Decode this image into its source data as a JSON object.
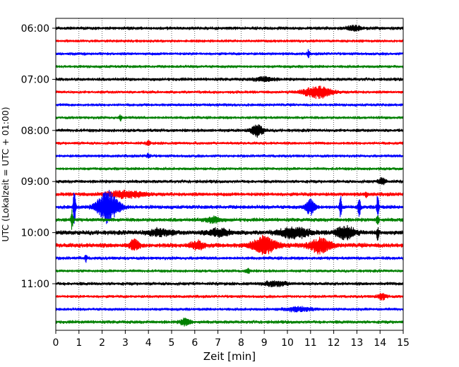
{
  "chart_data": {
    "type": "line",
    "xlabel": "Zeit  [min]",
    "ylabel": "UTC (Lokalzeit = UTC + 01:00)",
    "xlim": [
      0,
      15
    ],
    "x_ticks": [
      "0",
      "1",
      "2",
      "3",
      "4",
      "5",
      "6",
      "7",
      "8",
      "9",
      "10",
      "11",
      "12",
      "13",
      "14",
      "15"
    ],
    "y_ticks": [
      "06:00",
      "07:00",
      "08:00",
      "09:00",
      "10:00",
      "11:00"
    ],
    "grid": "vertical dotted at each minute",
    "series_colors": [
      "#000000",
      "#ff0000",
      "#0000ff",
      "#008000"
    ],
    "traces": [
      {
        "start": "06:00",
        "color": "#000000",
        "amp": 0.22,
        "events": [
          {
            "t": 12.9,
            "a": 0.35,
            "w": 0.3
          }
        ]
      },
      {
        "start": "06:15",
        "color": "#ff0000",
        "amp": 0.2,
        "events": []
      },
      {
        "start": "06:30",
        "color": "#0000ff",
        "amp": 0.2,
        "events": [
          {
            "t": 10.9,
            "a": 0.55,
            "w": 0.05
          }
        ]
      },
      {
        "start": "06:45",
        "color": "#008000",
        "amp": 0.2,
        "events": []
      },
      {
        "start": "07:00",
        "color": "#000000",
        "amp": 0.22,
        "events": [
          {
            "t": 9.0,
            "a": 0.3,
            "w": 0.4
          }
        ]
      },
      {
        "start": "07:15",
        "color": "#ff0000",
        "amp": 0.2,
        "events": [
          {
            "t": 11.3,
            "a": 0.9,
            "w": 0.6
          }
        ]
      },
      {
        "start": "07:30",
        "color": "#0000ff",
        "amp": 0.2,
        "events": []
      },
      {
        "start": "07:45",
        "color": "#008000",
        "amp": 0.2,
        "events": [
          {
            "t": 2.8,
            "a": 0.4,
            "w": 0.05
          }
        ]
      },
      {
        "start": "08:00",
        "color": "#000000",
        "amp": 0.22,
        "events": [
          {
            "t": 8.7,
            "a": 0.9,
            "w": 0.25
          }
        ]
      },
      {
        "start": "08:15",
        "color": "#ff0000",
        "amp": 0.2,
        "events": [
          {
            "t": 4.0,
            "a": 0.35,
            "w": 0.08
          }
        ]
      },
      {
        "start": "08:30",
        "color": "#0000ff",
        "amp": 0.2,
        "events": [
          {
            "t": 4.0,
            "a": 0.35,
            "w": 0.08
          }
        ]
      },
      {
        "start": "08:45",
        "color": "#008000",
        "amp": 0.2,
        "events": []
      },
      {
        "start": "09:00",
        "color": "#000000",
        "amp": 0.22,
        "events": [
          {
            "t": 14.1,
            "a": 0.5,
            "w": 0.15
          }
        ]
      },
      {
        "start": "09:15",
        "color": "#ff0000",
        "amp": 0.25,
        "events": [
          {
            "t": 3.0,
            "a": 0.5,
            "w": 0.8
          },
          {
            "t": 13.4,
            "a": 0.45,
            "w": 0.05
          }
        ]
      },
      {
        "start": "09:30",
        "color": "#0000ff",
        "amp": 0.25,
        "events": [
          {
            "t": 2.25,
            "a": 2.4,
            "w": 0.45
          },
          {
            "t": 0.8,
            "a": 2.8,
            "w": 0.05
          },
          {
            "t": 11.0,
            "a": 1.2,
            "w": 0.2
          },
          {
            "t": 12.3,
            "a": 1.6,
            "w": 0.05
          },
          {
            "t": 13.1,
            "a": 1.8,
            "w": 0.05
          },
          {
            "t": 13.9,
            "a": 2.0,
            "w": 0.05
          }
        ]
      },
      {
        "start": "09:45",
        "color": "#008000",
        "amp": 0.25,
        "events": [
          {
            "t": 0.7,
            "a": 1.4,
            "w": 0.05
          },
          {
            "t": 6.8,
            "a": 0.45,
            "w": 0.3
          },
          {
            "t": 13.9,
            "a": 0.9,
            "w": 0.05
          }
        ]
      },
      {
        "start": "10:00",
        "color": "#000000",
        "amp": 0.3,
        "events": [
          {
            "t": 4.5,
            "a": 0.5,
            "w": 0.5
          },
          {
            "t": 7.0,
            "a": 0.5,
            "w": 0.5
          },
          {
            "t": 10.3,
            "a": 0.8,
            "w": 0.6
          },
          {
            "t": 12.5,
            "a": 1.0,
            "w": 0.4
          },
          {
            "t": 13.9,
            "a": 1.0,
            "w": 0.05
          }
        ]
      },
      {
        "start": "10:15",
        "color": "#ff0000",
        "amp": 0.3,
        "events": [
          {
            "t": 3.4,
            "a": 0.8,
            "w": 0.2
          },
          {
            "t": 6.1,
            "a": 0.6,
            "w": 0.3
          },
          {
            "t": 9.0,
            "a": 1.3,
            "w": 0.5
          },
          {
            "t": 11.4,
            "a": 1.1,
            "w": 0.45
          }
        ]
      },
      {
        "start": "10:30",
        "color": "#0000ff",
        "amp": 0.22,
        "events": [
          {
            "t": 1.3,
            "a": 0.5,
            "w": 0.05
          }
        ]
      },
      {
        "start": "10:45",
        "color": "#008000",
        "amp": 0.2,
        "events": [
          {
            "t": 8.3,
            "a": 0.35,
            "w": 0.1
          }
        ]
      },
      {
        "start": "11:00",
        "color": "#000000",
        "amp": 0.22,
        "events": [
          {
            "t": 9.5,
            "a": 0.35,
            "w": 0.5
          }
        ]
      },
      {
        "start": "11:15",
        "color": "#ff0000",
        "amp": 0.2,
        "events": [
          {
            "t": 14.1,
            "a": 0.45,
            "w": 0.2
          }
        ]
      },
      {
        "start": "11:30",
        "color": "#0000ff",
        "amp": 0.2,
        "events": [
          {
            "t": 10.5,
            "a": 0.3,
            "w": 0.6
          }
        ]
      },
      {
        "start": "11:45",
        "color": "#008000",
        "amp": 0.22,
        "events": [
          {
            "t": 5.6,
            "a": 0.6,
            "w": 0.2
          }
        ]
      }
    ]
  }
}
